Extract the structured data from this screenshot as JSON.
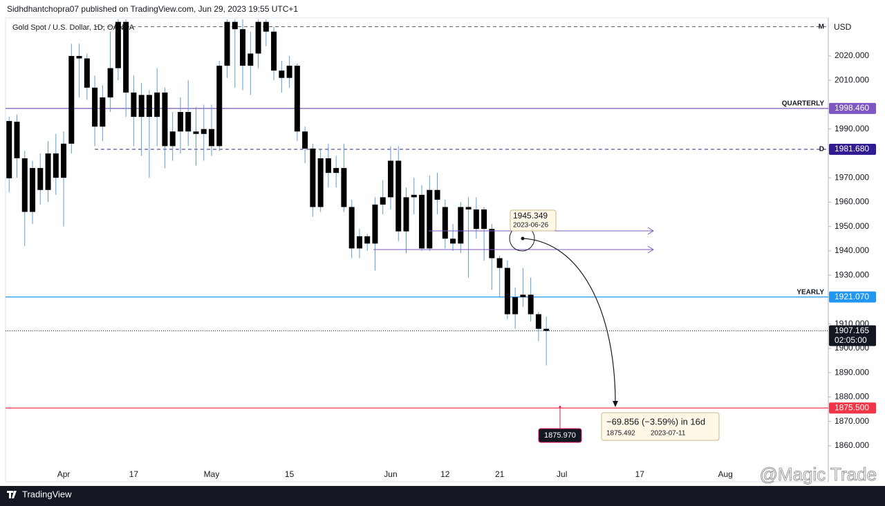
{
  "chart_data": {
    "type": "candlestick",
    "subtitle": "Sidhdhantchopra07 published on TradingView.com, Jun 29, 2023 19:55 UTC+1",
    "title": "Gold Spot / U.S. Dollar, 1D, OANDA",
    "currency": "USD",
    "color": "#000000",
    "categories": [
      null,
      null,
      null,
      null,
      null,
      null,
      null,
      "Apr",
      null,
      null,
      null,
      null,
      null,
      null,
      null,
      null,
      "17",
      null,
      null,
      null,
      null,
      null,
      null,
      null,
      null,
      null,
      "May",
      null,
      null,
      null,
      null,
      null,
      null,
      null,
      null,
      null,
      "15",
      null,
      null,
      null,
      null,
      null,
      null,
      null,
      null,
      null,
      null,
      null,
      null,
      "Jun",
      null,
      null,
      null,
      null,
      null,
      null,
      "12",
      null,
      null,
      null,
      null,
      null,
      null,
      "21",
      null,
      null,
      null,
      null,
      null,
      null,
      null,
      "Jul",
      null,
      null,
      null,
      null,
      null,
      null,
      null,
      null,
      null,
      "17",
      null,
      null,
      null,
      null,
      null,
      null,
      null,
      null,
      null,
      null,
      "Aug"
    ],
    "open": [
      1969.8,
      1993,
      1978,
      1956,
      1974,
      1965,
      1980,
      1970,
      1984,
      2020,
      2019,
      2007,
      1991,
      2003,
      2015,
      2034,
      2005,
      1995,
      2004,
      1995,
      2005,
      1983,
      1989,
      1997,
      1989,
      1988,
      1990,
      1983,
      2016,
      2034,
      2031,
      2016,
      2021,
      2034,
      2030,
      2014,
      2011,
      2016,
      1989,
      1982,
      1958,
      1978,
      1972,
      1974,
      1958,
      1941,
      1946,
      1943,
      1959,
      1962,
      1977,
      1948,
      1962,
      1963,
      1941,
      1965,
      1958,
      1945,
      1943,
      1958,
      1957,
      1949,
      1949,
      1937,
      1933,
      1914,
      1921,
      1922,
      1914,
      1908,
      null,
      null,
      null,
      null,
      null,
      null,
      null,
      null,
      null,
      null,
      null,
      null,
      null,
      null,
      null,
      null,
      null,
      null,
      null,
      null,
      null,
      null,
      null
    ],
    "high": [
      1995,
      1996,
      1981,
      1977,
      1980,
      1985,
      1988,
      1989,
      2025,
      2025,
      2021,
      2012,
      2008,
      2030,
      2035,
      2035,
      2012,
      2009,
      2006,
      2015,
      2007,
      1997,
      2003,
      2010,
      1999,
      2000,
      2000,
      2018,
      2035,
      2035,
      2035,
      2030,
      2035,
      2035,
      2032,
      2018,
      2020,
      2017,
      1991,
      1984,
      1982,
      1984,
      1979,
      1984,
      1961,
      1949,
      1947,
      1962,
      1969,
      1983,
      1983,
      1966,
      1970,
      1967,
      1971,
      1972,
      1961,
      1951,
      1960,
      1962,
      1962,
      1958,
      1951,
      1938,
      1936,
      1925,
      1933,
      1929,
      1915,
      1913,
      null,
      null,
      null,
      null,
      null,
      null,
      null,
      null,
      null,
      null,
      null,
      null,
      null,
      null,
      null,
      null,
      null,
      null,
      null,
      null,
      null,
      null,
      null
    ],
    "low": [
      1964,
      1970,
      1942,
      1951,
      1959,
      1960,
      1963,
      1950,
      1980,
      2003,
      2002,
      1983,
      1985,
      1997,
      2010,
      1995,
      1983,
      1979,
      1970,
      1983,
      1974,
      1977,
      1980,
      1983,
      1975,
      1977,
      1979,
      1981,
      2011,
      2007,
      2006,
      2004,
      2015,
      2024,
      2010,
      2005,
      2007,
      1985,
      1976,
      1954,
      1956,
      1966,
      1966,
      1956,
      1937,
      1937,
      1940,
      1932,
      1955,
      1957,
      1944,
      1939,
      1955,
      1940,
      1940,
      1955,
      1941,
      1940,
      1939,
      1929,
      1945,
      1936,
      1924,
      1921,
      1912,
      1908,
      1917,
      1911,
      1903,
      1893,
      null,
      null,
      null,
      null,
      null,
      null,
      null,
      null,
      null,
      null,
      null,
      null,
      null,
      null,
      null,
      null,
      null,
      null,
      null,
      null,
      null,
      null,
      null
    ],
    "close": [
      1993.3,
      1978,
      1956,
      1974,
      1965,
      1980,
      1970,
      1984,
      2020,
      2019,
      2007,
      1991,
      2003,
      2015,
      2034,
      2005,
      1995,
      2004,
      1995,
      2005,
      1983,
      1989,
      1997,
      1989,
      1988,
      1990,
      1983,
      2016,
      2034,
      2031,
      2016,
      2021,
      2034,
      2030,
      2014,
      2011,
      2016,
      1989,
      1982,
      1958,
      1978,
      1972,
      1974,
      1958,
      1941,
      1946,
      1943,
      1959,
      1962,
      1977,
      1948,
      1962,
      1963,
      1941,
      1965,
      1961,
      1945,
      1943,
      1958,
      1957,
      1949,
      1957,
      1937,
      1933,
      1914,
      1921,
      1922,
      1914,
      1908,
      1907.165,
      null,
      null,
      null,
      null,
      null,
      null,
      null,
      null,
      null,
      null,
      null,
      null,
      null,
      null,
      null,
      null,
      null,
      null,
      null,
      null,
      null,
      null,
      null
    ],
    "ylim": [
      1845.2,
      2035.6
    ],
    "yticks": [
      {
        "value": 1860,
        "label": "1860.000"
      },
      {
        "value": 1870,
        "label": "1870.000"
      },
      {
        "value": 1880,
        "label": "1880.000"
      },
      {
        "value": 1890,
        "label": "1890.000"
      },
      {
        "value": 1900,
        "label": "1900.000"
      },
      {
        "value": 1910,
        "label": "1910.000"
      },
      {
        "value": 1930,
        "label": "1930.000"
      },
      {
        "value": 1940,
        "label": "1940.000"
      },
      {
        "value": 1950,
        "label": "1950.000"
      },
      {
        "value": 1960,
        "label": "1960.000"
      },
      {
        "value": 1970,
        "label": "1970.000"
      },
      {
        "value": 1990,
        "label": "1990.000"
      },
      {
        "value": 2010,
        "label": "2010.000"
      },
      {
        "value": 2020,
        "label": "2020.000"
      }
    ],
    "levels": [
      {
        "name": "M",
        "value": 2032,
        "color": "#555555",
        "dashed": true
      },
      {
        "name": "QUARTERLY",
        "value": 1998.46,
        "value_label": "1998.460",
        "color": "#7e57c2"
      },
      {
        "name": "D",
        "value": 1981.68,
        "value_label": "1981.680",
        "color": "#311b92",
        "dashed": true
      },
      {
        "name": "YEARLY",
        "value": 1921.07,
        "value_label": "1921.070",
        "color": "#2196f3"
      },
      {
        "value": 1875.5,
        "value_label": "1875.500",
        "color": "#f23645"
      }
    ],
    "current_price": {
      "value": 1907.165,
      "countdown": "02:05:00"
    },
    "marker": {
      "value": 1875.97,
      "value_label": "1875.970"
    },
    "callout": {
      "price": "1945.349",
      "date": "2023-06-26"
    },
    "measure": {
      "change": "−69.856 (−3.59%) in 16d",
      "price": "1875.492",
      "date": "2023-07-11"
    },
    "footer": "TradingView",
    "watermark": "@Magic Trade"
  }
}
